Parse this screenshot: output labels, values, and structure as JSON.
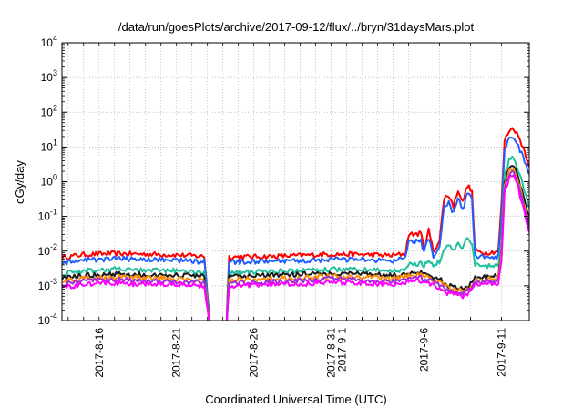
{
  "chart_data": {
    "type": "line",
    "title": "/data/run/goesPlots/archive/2017-09-12/flux/../bryn/31daysMars.plot",
    "xlabel": "Coordinated Universal Time (UTC)",
    "ylabel": "cGy/day",
    "y_scale": "log",
    "ylim": [
      0.0001,
      10000
    ],
    "x_range_days_from_aug13": [
      0.6,
      30.8
    ],
    "grid": true,
    "legend": "none",
    "y_ticks": [
      {
        "base": "10",
        "exp": "-4",
        "value": 0.0001
      },
      {
        "base": "10",
        "exp": "-3",
        "value": 0.001
      },
      {
        "base": "10",
        "exp": "-2",
        "value": 0.01
      },
      {
        "base": "10",
        "exp": "-1",
        "value": 0.1
      },
      {
        "base": "10",
        "exp": "0",
        "value": 1
      },
      {
        "base": "10",
        "exp": "1",
        "value": 10
      },
      {
        "base": "10",
        "exp": "2",
        "value": 100
      },
      {
        "base": "10",
        "exp": "3",
        "value": 1000
      },
      {
        "base": "10",
        "exp": "4",
        "value": 10000
      }
    ],
    "x_ticks": [
      {
        "day": 3,
        "lines": [
          "2017-8-16"
        ]
      },
      {
        "day": 8,
        "lines": [
          "2017-8-21"
        ]
      },
      {
        "day": 13,
        "lines": [
          "2017-8-26"
        ]
      },
      {
        "day": 18,
        "lines": [
          "2017-8-31",
          "2017-9-1"
        ]
      },
      {
        "day": 24,
        "lines": [
          "2017-9-6"
        ]
      },
      {
        "day": 29,
        "lines": [
          "2017-9-11"
        ]
      }
    ],
    "gap_days": [
      10.2,
      11.2
    ],
    "series": [
      {
        "color": "#ff0000",
        "points": [
          [
            0.6,
            0.0065
          ],
          [
            2,
            0.008
          ],
          [
            4,
            0.0085
          ],
          [
            6,
            0.0082
          ],
          [
            8,
            0.0078
          ],
          [
            9.8,
            0.007
          ],
          [
            10.2,
            5e-05
          ],
          [
            11.2,
            5e-05
          ],
          [
            11.4,
            0.0068
          ],
          [
            14,
            0.007
          ],
          [
            16,
            0.0075
          ],
          [
            18,
            0.0082
          ],
          [
            20,
            0.008
          ],
          [
            22,
            0.0075
          ],
          [
            22.8,
            0.0085
          ],
          [
            23,
            0.03
          ],
          [
            23.8,
            0.032
          ],
          [
            24,
            0.012
          ],
          [
            24.3,
            0.04
          ],
          [
            24.6,
            0.01
          ],
          [
            25,
            0.02
          ],
          [
            25.3,
            0.35
          ],
          [
            25.6,
            0.4
          ],
          [
            25.9,
            0.2
          ],
          [
            26.2,
            0.6
          ],
          [
            26.5,
            0.25
          ],
          [
            26.8,
            0.8
          ],
          [
            27.1,
            0.5
          ],
          [
            27.3,
            0.01
          ],
          [
            28,
            0.009
          ],
          [
            28.8,
            0.01
          ],
          [
            29,
            0.2
          ],
          [
            29.2,
            15
          ],
          [
            29.5,
            30
          ],
          [
            29.8,
            35
          ],
          [
            30.1,
            20
          ],
          [
            30.4,
            10
          ],
          [
            30.8,
            3
          ]
        ]
      },
      {
        "color": "#1f5fff",
        "points": [
          [
            0.6,
            0.0045
          ],
          [
            2,
            0.0055
          ],
          [
            4,
            0.006
          ],
          [
            6,
            0.0058
          ],
          [
            8,
            0.0055
          ],
          [
            9.8,
            0.005
          ],
          [
            10.2,
            5e-05
          ],
          [
            11.2,
            5e-05
          ],
          [
            11.4,
            0.0048
          ],
          [
            14,
            0.005
          ],
          [
            16,
            0.0052
          ],
          [
            18,
            0.0058
          ],
          [
            20,
            0.0056
          ],
          [
            22,
            0.0052
          ],
          [
            22.8,
            0.006
          ],
          [
            23,
            0.018
          ],
          [
            23.8,
            0.02
          ],
          [
            24,
            0.009
          ],
          [
            24.3,
            0.025
          ],
          [
            24.6,
            0.007
          ],
          [
            25,
            0.012
          ],
          [
            25.3,
            0.22
          ],
          [
            25.6,
            0.25
          ],
          [
            25.9,
            0.12
          ],
          [
            26.2,
            0.38
          ],
          [
            26.5,
            0.15
          ],
          [
            26.8,
            0.5
          ],
          [
            27.1,
            0.3
          ],
          [
            27.3,
            0.007
          ],
          [
            28,
            0.0065
          ],
          [
            28.8,
            0.007
          ],
          [
            29,
            0.1
          ],
          [
            29.2,
            8
          ],
          [
            29.5,
            18
          ],
          [
            29.8,
            20
          ],
          [
            30.1,
            10
          ],
          [
            30.4,
            5
          ],
          [
            30.8,
            1.6
          ]
        ]
      },
      {
        "color": "#1fbf9f",
        "points": [
          [
            0.6,
            0.0022
          ],
          [
            2,
            0.0027
          ],
          [
            4,
            0.003
          ],
          [
            6,
            0.0028
          ],
          [
            8,
            0.0027
          ],
          [
            9.8,
            0.0025
          ],
          [
            10.2,
            5e-05
          ],
          [
            11.2,
            5e-05
          ],
          [
            11.4,
            0.0024
          ],
          [
            14,
            0.0026
          ],
          [
            16,
            0.0027
          ],
          [
            18,
            0.003
          ],
          [
            20,
            0.0029
          ],
          [
            22,
            0.0027
          ],
          [
            22.8,
            0.003
          ],
          [
            23,
            0.004
          ],
          [
            23.8,
            0.0045
          ],
          [
            24,
            0.0035
          ],
          [
            24.3,
            0.006
          ],
          [
            24.6,
            0.004
          ],
          [
            25,
            0.005
          ],
          [
            25.3,
            0.012
          ],
          [
            25.6,
            0.015
          ],
          [
            25.9,
            0.01
          ],
          [
            26.2,
            0.02
          ],
          [
            26.5,
            0.012
          ],
          [
            26.8,
            0.025
          ],
          [
            27.1,
            0.015
          ],
          [
            27.3,
            0.004
          ],
          [
            28,
            0.0035
          ],
          [
            28.8,
            0.004
          ],
          [
            29,
            0.02
          ],
          [
            29.2,
            1.5
          ],
          [
            29.5,
            4
          ],
          [
            29.8,
            5
          ],
          [
            30.1,
            2
          ],
          [
            30.4,
            0.8
          ],
          [
            30.8,
            0.2
          ]
        ]
      },
      {
        "color": "#1a1a1a",
        "points": [
          [
            0.6,
            0.0016
          ],
          [
            2,
            0.002
          ],
          [
            4,
            0.0022
          ],
          [
            6,
            0.0021
          ],
          [
            8,
            0.002
          ],
          [
            9.8,
            0.0019
          ],
          [
            10.2,
            5e-05
          ],
          [
            11.2,
            5e-05
          ],
          [
            11.4,
            0.0018
          ],
          [
            14,
            0.002
          ],
          [
            16,
            0.0021
          ],
          [
            18,
            0.0023
          ],
          [
            20,
            0.0022
          ],
          [
            22,
            0.002
          ],
          [
            22.8,
            0.0022
          ],
          [
            23,
            0.0025
          ],
          [
            23.8,
            0.0024
          ],
          [
            24,
            0.002
          ],
          [
            24.3,
            0.0022
          ],
          [
            24.6,
            0.0018
          ],
          [
            25,
            0.0016
          ],
          [
            25.3,
            0.0012
          ],
          [
            25.6,
            0.001
          ],
          [
            25.9,
            0.0009
          ],
          [
            26.2,
            0.0009
          ],
          [
            26.5,
            0.0008
          ],
          [
            26.8,
            0.0009
          ],
          [
            27.1,
            0.0012
          ],
          [
            27.3,
            0.0018
          ],
          [
            28,
            0.0018
          ],
          [
            28.8,
            0.002
          ],
          [
            29,
            0.01
          ],
          [
            29.2,
            1
          ],
          [
            29.5,
            2.5
          ],
          [
            29.8,
            3
          ],
          [
            30.1,
            1.2
          ],
          [
            30.4,
            0.4
          ],
          [
            30.8,
            0.09
          ]
        ]
      },
      {
        "color": "#ff8c00",
        "points": [
          [
            0.6,
            0.0013
          ],
          [
            2,
            0.0016
          ],
          [
            4,
            0.0018
          ],
          [
            6,
            0.0017
          ],
          [
            8,
            0.0016
          ],
          [
            9.8,
            0.0015
          ],
          [
            10.2,
            5e-05
          ],
          [
            11.2,
            5e-05
          ],
          [
            11.4,
            0.0015
          ],
          [
            14,
            0.0016
          ],
          [
            16,
            0.0017
          ],
          [
            18,
            0.0019
          ],
          [
            20,
            0.0018
          ],
          [
            22,
            0.0016
          ],
          [
            22.8,
            0.0018
          ],
          [
            23,
            0.002
          ],
          [
            23.8,
            0.002
          ],
          [
            24,
            0.0017
          ],
          [
            24.3,
            0.0018
          ],
          [
            24.6,
            0.0015
          ],
          [
            25,
            0.0013
          ],
          [
            25.3,
            0.001
          ],
          [
            25.6,
            0.0009
          ],
          [
            25.9,
            0.0008
          ],
          [
            26.2,
            0.0008
          ],
          [
            26.5,
            0.0007
          ],
          [
            26.8,
            0.0008
          ],
          [
            27.1,
            0.001
          ],
          [
            27.3,
            0.0015
          ],
          [
            28,
            0.0015
          ],
          [
            28.8,
            0.0017
          ],
          [
            29,
            0.008
          ],
          [
            29.2,
            0.8
          ],
          [
            29.5,
            2
          ],
          [
            29.8,
            2.5
          ],
          [
            30.1,
            1
          ],
          [
            30.4,
            0.3
          ],
          [
            30.8,
            0.07
          ]
        ]
      },
      {
        "color": "#9b30d9",
        "points": [
          [
            0.6,
            0.0011
          ],
          [
            2,
            0.0014
          ],
          [
            4,
            0.0015
          ],
          [
            6,
            0.0014
          ],
          [
            8,
            0.0013
          ],
          [
            9.8,
            0.0013
          ],
          [
            10.2,
            5e-05
          ],
          [
            11.2,
            5e-05
          ],
          [
            11.4,
            0.0012
          ],
          [
            14,
            0.0013
          ],
          [
            16,
            0.0014
          ],
          [
            18,
            0.0016
          ],
          [
            20,
            0.0015
          ],
          [
            22,
            0.0013
          ],
          [
            22.8,
            0.0015
          ],
          [
            23,
            0.0017
          ],
          [
            23.8,
            0.0017
          ],
          [
            24,
            0.0014
          ],
          [
            24.3,
            0.0015
          ],
          [
            24.6,
            0.0012
          ],
          [
            25,
            0.0011
          ],
          [
            25.3,
            0.0009
          ],
          [
            25.6,
            0.0008
          ],
          [
            25.9,
            0.0007
          ],
          [
            26.2,
            0.0007
          ],
          [
            26.5,
            0.0006
          ],
          [
            26.8,
            0.0007
          ],
          [
            27.1,
            0.0009
          ],
          [
            27.3,
            0.0013
          ],
          [
            28,
            0.0013
          ],
          [
            28.8,
            0.0014
          ],
          [
            29,
            0.006
          ],
          [
            29.2,
            0.6
          ],
          [
            29.5,
            1.6
          ],
          [
            29.8,
            2
          ],
          [
            30.1,
            0.8
          ],
          [
            30.4,
            0.25
          ],
          [
            30.8,
            0.05
          ]
        ]
      },
      {
        "color": "#ff00ff",
        "points": [
          [
            0.6,
            0.0009
          ],
          [
            2,
            0.0011
          ],
          [
            4,
            0.0012
          ],
          [
            6,
            0.0011
          ],
          [
            8,
            0.0011
          ],
          [
            9.8,
            0.001
          ],
          [
            10.2,
            5e-05
          ],
          [
            11.2,
            5e-05
          ],
          [
            11.4,
            0.001
          ],
          [
            14,
            0.0011
          ],
          [
            16,
            0.0011
          ],
          [
            18,
            0.0013
          ],
          [
            20,
            0.0012
          ],
          [
            22,
            0.0011
          ],
          [
            22.8,
            0.0012
          ],
          [
            23,
            0.0014
          ],
          [
            23.8,
            0.0014
          ],
          [
            24,
            0.0012
          ],
          [
            24.3,
            0.0012
          ],
          [
            24.6,
            0.001
          ],
          [
            25,
            0.0009
          ],
          [
            25.3,
            0.0007
          ],
          [
            25.6,
            0.0006
          ],
          [
            25.9,
            0.0006
          ],
          [
            26.2,
            0.0006
          ],
          [
            26.5,
            0.0005
          ],
          [
            26.8,
            0.0006
          ],
          [
            27.1,
            0.0008
          ],
          [
            27.3,
            0.0011
          ],
          [
            28,
            0.0011
          ],
          [
            28.8,
            0.0012
          ],
          [
            29,
            0.005
          ],
          [
            29.2,
            0.5
          ],
          [
            29.5,
            1.3
          ],
          [
            29.8,
            1.6
          ],
          [
            30.1,
            0.6
          ],
          [
            30.4,
            0.18
          ],
          [
            30.8,
            0.03
          ]
        ]
      }
    ]
  }
}
